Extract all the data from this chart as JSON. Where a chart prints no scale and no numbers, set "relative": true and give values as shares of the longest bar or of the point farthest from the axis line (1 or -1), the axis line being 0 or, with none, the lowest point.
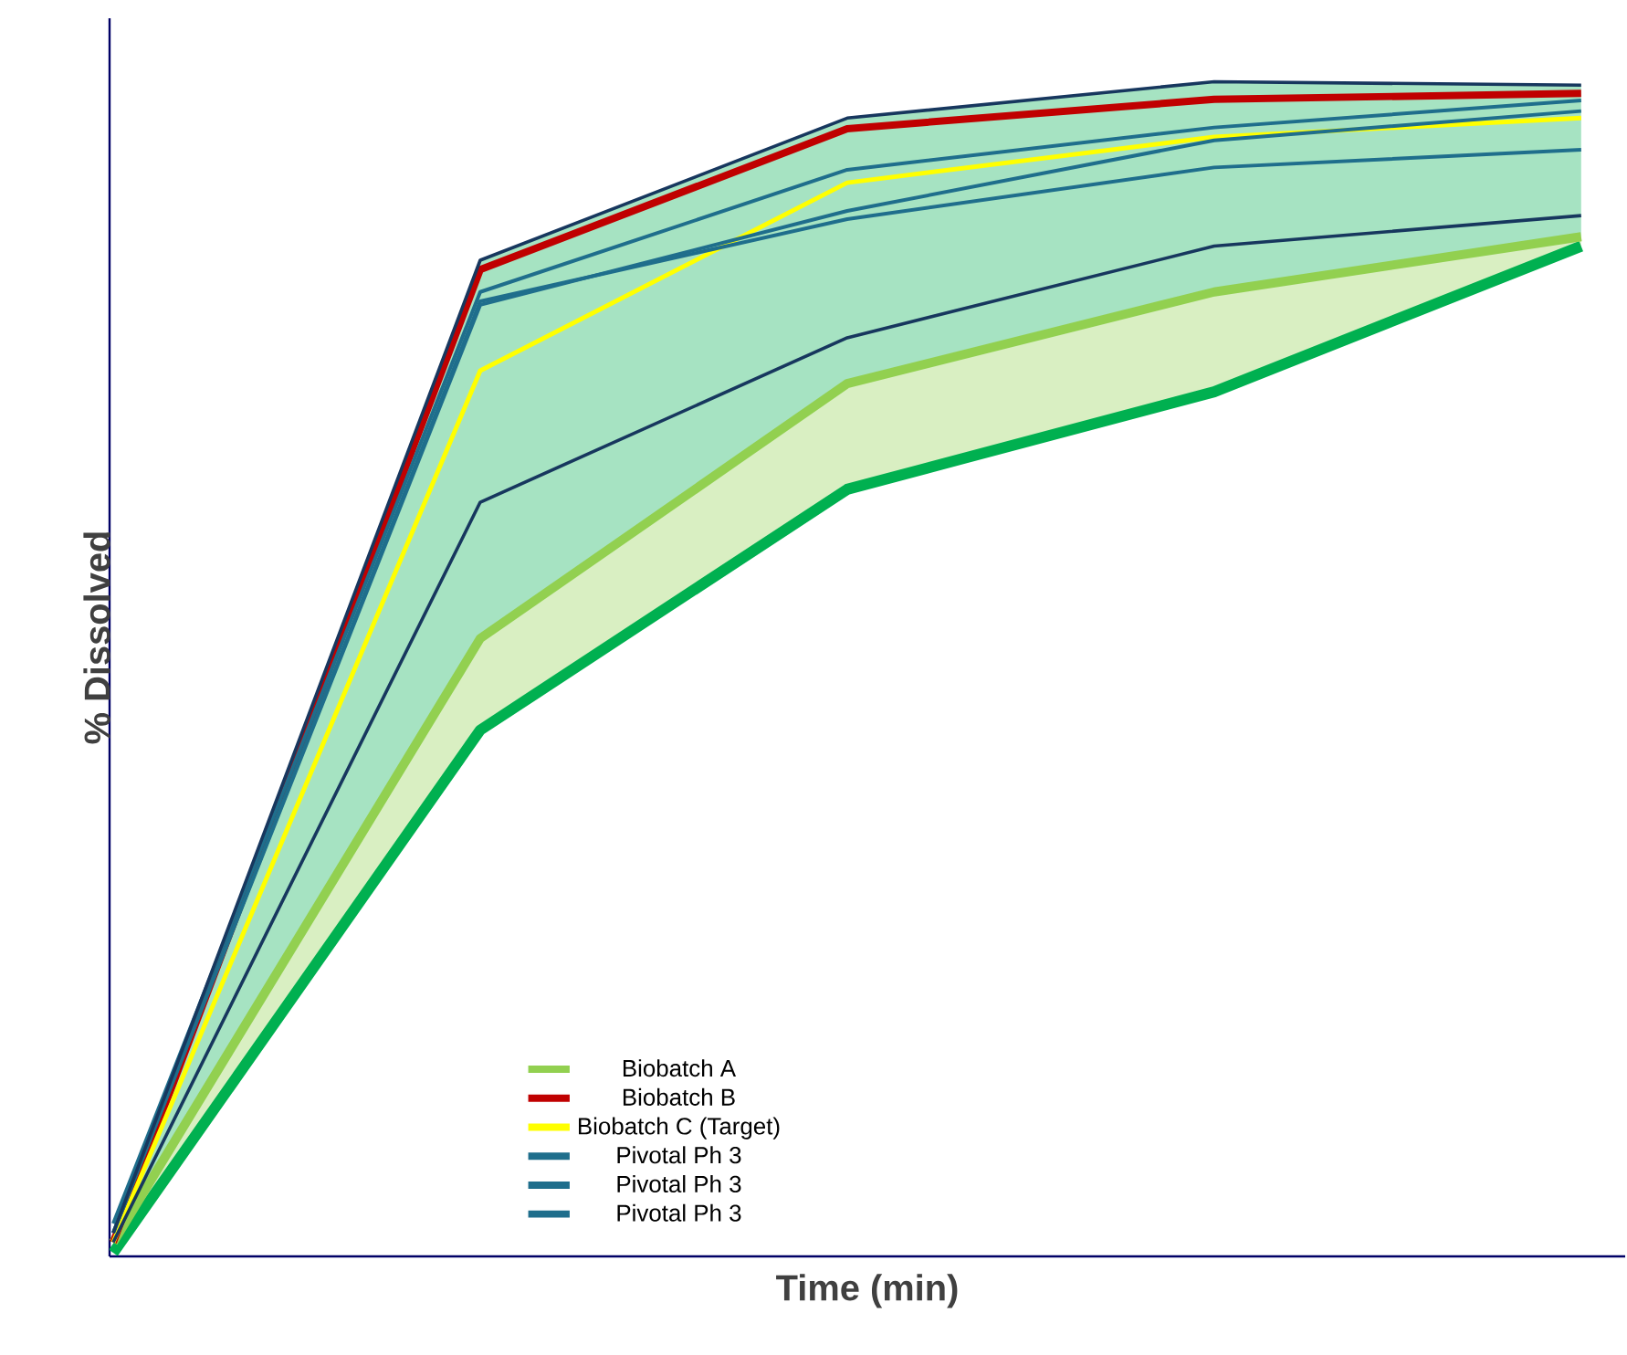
{
  "chart_data": {
    "type": "line",
    "relative": true,
    "xlabel": "Time (min)",
    "ylabel": "% Dissolved",
    "categories": [
      null,
      null,
      null,
      null,
      null
    ],
    "legend": "bottom",
    "series": [
      {
        "color": "#00b050",
        "values": [
          0.003,
          0.448,
          0.653,
          0.736,
          0.86
        ],
        "lower": [
          0.012,
          0.526,
          0.743,
          0.821,
          0.868
        ],
        "upper": [
          0.02,
          0.848,
          0.969,
          1.0,
          0.997
        ]
      },
      {
        "name": "Biobatch  A",
        "color": "#92d050",
        "values": [
          0.012,
          0.526,
          0.743,
          0.821,
          0.868
        ],
        "lower": [
          0.003,
          0.448,
          0.653,
          0.736,
          0.86
        ],
        "upper": [
          0.012,
          0.526,
          0.743,
          0.821,
          0.868
        ]
      },
      {
        "name": "Biobatch B",
        "color": "#c00000",
        "values": [
          0.012,
          0.84,
          0.96,
          0.985,
          0.99
        ]
      },
      {
        "name": "Biobatch C (Target)",
        "color": "#ffff00",
        "values": [
          0.012,
          0.754,
          0.914,
          0.953,
          0.969
        ]
      },
      {
        "name": "Pivotal Ph 3",
        "color": "#1f6e8c",
        "values": [
          0.028,
          0.821,
          0.925,
          0.961,
          0.984
        ]
      },
      {
        "name": "Pivotal Ph 3",
        "color": "#1f6e8c",
        "values": [
          0.02,
          0.813,
          0.883,
          0.927,
          0.942
        ]
      },
      {
        "name": "Pivotal Ph 3",
        "color": "#1f6e8c",
        "values": [
          0.02,
          0.81,
          0.89,
          0.95,
          0.975
        ]
      },
      {
        "color": "#17375e",
        "values": [
          0.012,
          0.642,
          0.782,
          0.86,
          0.886
        ]
      },
      {
        "color": "#17375e",
        "values": [
          0.02,
          0.848,
          0.969,
          1.0,
          0.997
        ]
      }
    ]
  }
}
